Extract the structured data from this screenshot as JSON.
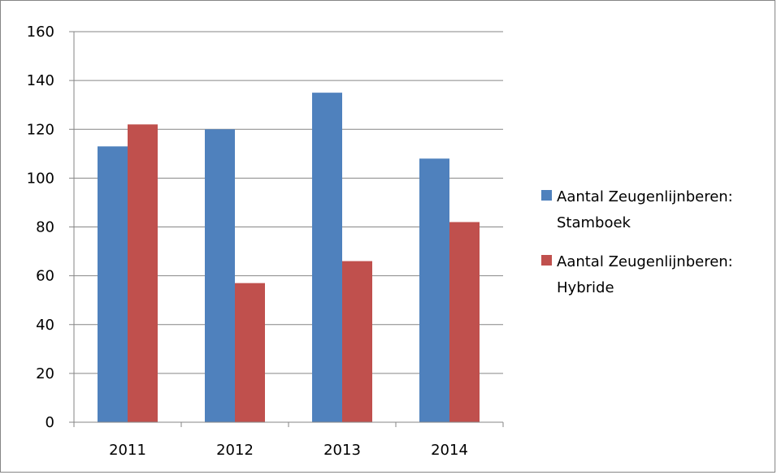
{
  "chart_data": {
    "type": "bar",
    "categories": [
      "2011",
      "2012",
      "2013",
      "2014"
    ],
    "series": [
      {
        "name": "Aantal Zeugenlijnberen: Stamboek",
        "values": [
          113,
          120,
          135,
          108
        ],
        "color": "#4F81BD"
      },
      {
        "name": "Aantal Zeugenlijnberen: Hybride",
        "values": [
          122,
          57,
          66,
          82
        ],
        "color": "#C0504D"
      }
    ],
    "legend_lines": [
      [
        "Aantal Zeugenlijnberen:",
        "Stamboek"
      ],
      [
        "Aantal Zeugenlijnberen:",
        "Hybride"
      ]
    ],
    "y_ticks": [
      "0",
      "20",
      "40",
      "60",
      "80",
      "100",
      "120",
      "140",
      "160"
    ],
    "ylim": [
      0,
      160
    ],
    "grid": true,
    "legend_position": "right",
    "gridline_color": "#868686"
  }
}
